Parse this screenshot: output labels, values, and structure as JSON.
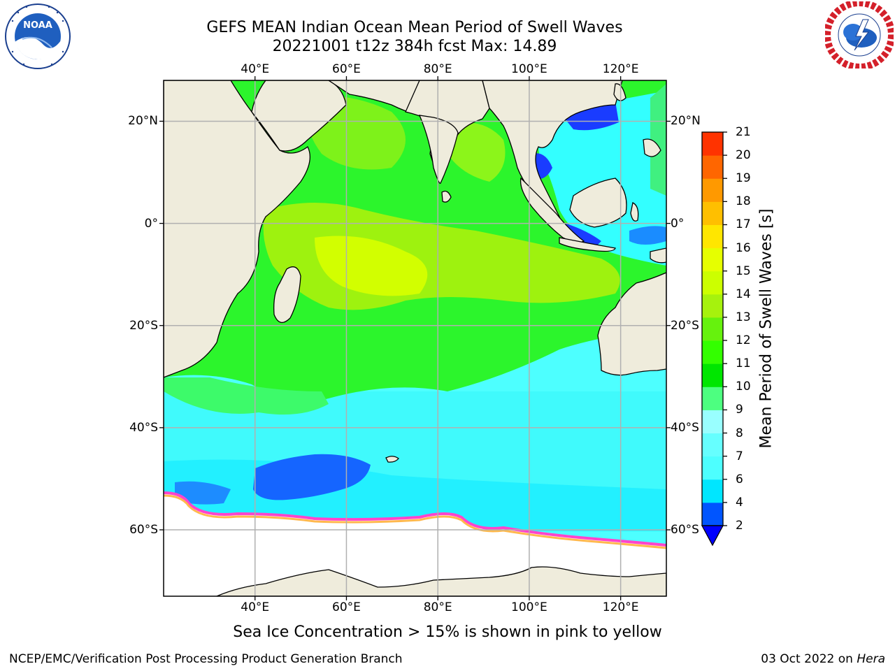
{
  "title": {
    "line1": "GEFS MEAN Indian Ocean Mean Period of Swell Waves",
    "line2": "20221001 t12z 384h fcst   Max: 14.89"
  },
  "logos": {
    "left": {
      "name": "noaa-logo",
      "text": "NOAA",
      "ring_text": "NATIONAL OCEANIC AND ATMOSPHERIC ADMINISTRATION",
      "bottom_text": "U.S. DEPARTMENT OF COMMERCE"
    },
    "right": {
      "name": "nws-logo",
      "ring_text": "NATIONAL WEATHER SERVICE"
    }
  },
  "map": {
    "projection": "cylindrical",
    "lon_range": [
      20,
      130
    ],
    "lat_range": [
      -73,
      28
    ],
    "lon_ticks": [
      {
        "value": 40,
        "label": "40°E"
      },
      {
        "value": 60,
        "label": "60°E"
      },
      {
        "value": 80,
        "label": "80°E"
      },
      {
        "value": 100,
        "label": "100°E"
      },
      {
        "value": 120,
        "label": "120°E"
      }
    ],
    "lat_ticks": [
      {
        "value": 20,
        "label": "20°N"
      },
      {
        "value": 0,
        "label": "0°"
      },
      {
        "value": -20,
        "label": "20°S"
      },
      {
        "value": -40,
        "label": "40°S"
      },
      {
        "value": -60,
        "label": "60°S"
      }
    ],
    "grid": true,
    "land_color": "#efecdc",
    "ice_note": "Sea Ice Concentration > 15% is shown in pink to yellow"
  },
  "colorbar": {
    "title": "Mean Period of Swell Waves [s]",
    "levels": [
      2,
      4,
      6,
      7,
      8,
      9,
      10,
      11,
      12,
      13,
      14,
      15,
      16,
      17,
      18,
      19,
      20,
      21
    ],
    "labels": [
      "2",
      "4",
      "6",
      "7",
      "8",
      "9",
      "10",
      "11",
      "12",
      "13",
      "14",
      "15",
      "16",
      "17",
      "18",
      "19",
      "20",
      "21"
    ],
    "colors": [
      "#0055ff",
      "#00e6ff",
      "#4dffff",
      "#66ffff",
      "#99ffff",
      "#4dff80",
      "#00e600",
      "#33ff00",
      "#66f20d",
      "#a6f20d",
      "#ccff00",
      "#e6ff00",
      "#ffe600",
      "#ffbf00",
      "#ff9900",
      "#ff6600",
      "#ff3300"
    ],
    "under_color": "#0000ff",
    "extend": "min",
    "value_max": 14.89
  },
  "footer": {
    "credit": "NCEP/EMC/Verification Post Processing Product Generation Branch",
    "date": "03 Oct 2022 on ",
    "host": "Hera"
  }
}
